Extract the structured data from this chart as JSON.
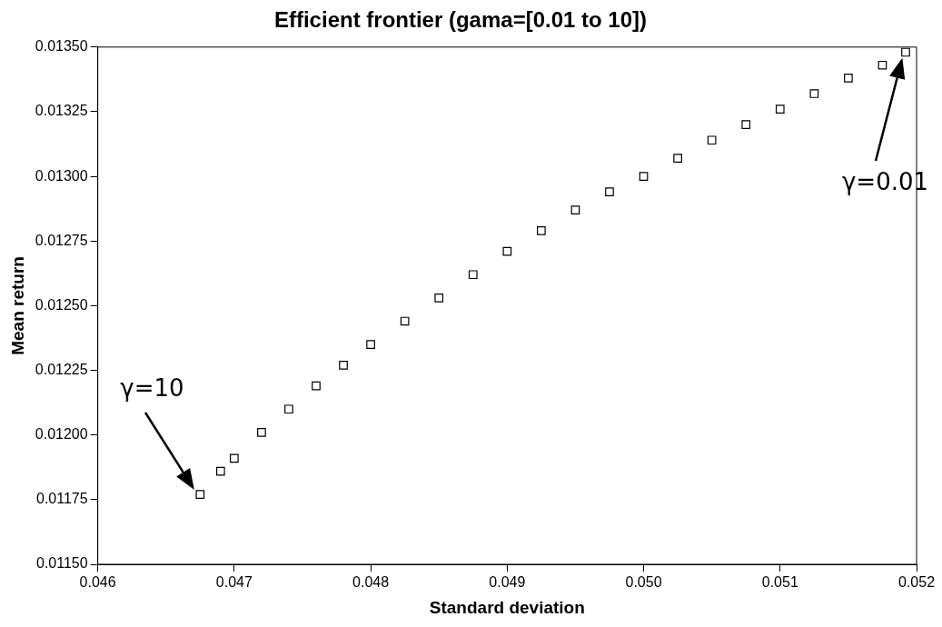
{
  "chart_data": {
    "type": "scatter",
    "title": "Efficient frontier (gama=[0.01 to 10])",
    "xlabel": "Standard deviation",
    "ylabel": "Mean return",
    "x": [
      0.04675,
      0.0469,
      0.047,
      0.0472,
      0.0474,
      0.0476,
      0.0478,
      0.048,
      0.04825,
      0.0485,
      0.04875,
      0.049,
      0.04925,
      0.0495,
      0.04975,
      0.05,
      0.05025,
      0.0505,
      0.05075,
      0.051,
      0.05125,
      0.0515,
      0.05175,
      0.05192
    ],
    "series": [
      {
        "color": "#000000",
        "values": [
          0.01177,
          0.01186,
          0.01191,
          0.01201,
          0.0121,
          0.01219,
          0.01227,
          0.01235,
          0.01244,
          0.01253,
          0.01262,
          0.01271,
          0.01279,
          0.01287,
          0.01294,
          0.013,
          0.01307,
          0.01314,
          0.0132,
          0.01326,
          0.01332,
          0.01338,
          0.01343,
          0.01348
        ]
      }
    ],
    "xlim": [
      0.046,
      0.052
    ],
    "xticks": [
      {
        "value": 0.046,
        "label": "0.046"
      },
      {
        "value": 0.047,
        "label": "0.047"
      },
      {
        "value": 0.048,
        "label": "0.048"
      },
      {
        "value": 0.049,
        "label": "0.049"
      },
      {
        "value": 0.05,
        "label": "0.050"
      },
      {
        "value": 0.051,
        "label": "0.051"
      },
      {
        "value": 0.052,
        "label": "0.052"
      }
    ],
    "ylim": [
      0.0115,
      0.0135
    ],
    "yticks": [
      {
        "value": 0.0115,
        "label": "0.01150"
      },
      {
        "value": 0.01175,
        "label": "0.01175"
      },
      {
        "value": 0.012,
        "label": "0.01200"
      },
      {
        "value": 0.01225,
        "label": "0.01225"
      },
      {
        "value": 0.0125,
        "label": "0.01250"
      },
      {
        "value": 0.01275,
        "label": "0.01275"
      },
      {
        "value": 0.013,
        "label": "0.01300"
      },
      {
        "value": 0.01325,
        "label": "0.01325"
      },
      {
        "value": 0.0135,
        "label": "0.01350"
      }
    ],
    "annotations": [
      "γ=10",
      "γ=0.01"
    ],
    "grid": false,
    "legend": false,
    "marker": "square"
  }
}
